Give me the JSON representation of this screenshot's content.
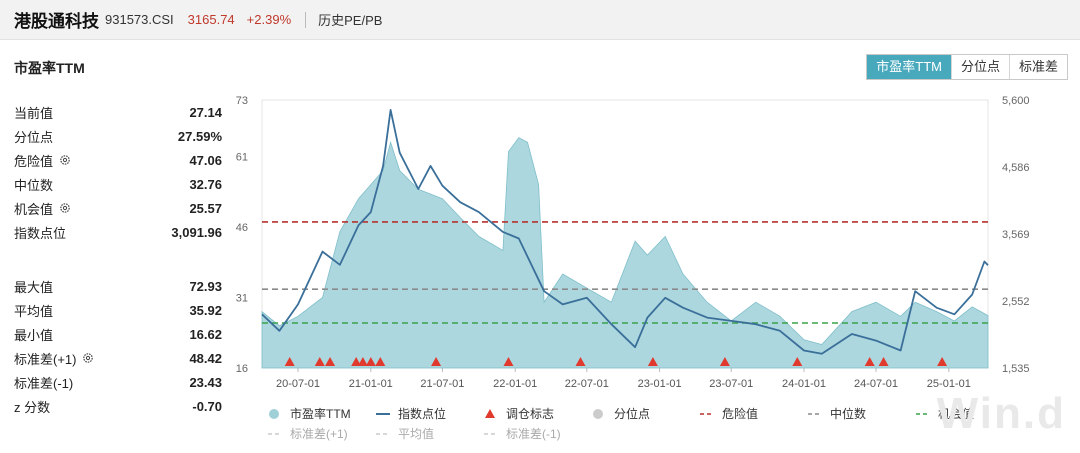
{
  "header": {
    "name": "港股通科技",
    "code": "931573.CSI",
    "price": "3165.74",
    "change": "+2.39%",
    "history_link": "历史PE/PB"
  },
  "section_title": "市盈率TTM",
  "tabs": [
    {
      "label": "市盈率TTM",
      "active": true
    },
    {
      "label": "分位点",
      "active": false
    },
    {
      "label": "标准差",
      "active": false
    }
  ],
  "stats_top": [
    {
      "label": "当前值",
      "value": "27.14",
      "gear": false
    },
    {
      "label": "分位点",
      "value": "27.59%",
      "gear": false
    },
    {
      "label": "危险值",
      "value": "47.06",
      "gear": true
    },
    {
      "label": "中位数",
      "value": "32.76",
      "gear": false
    },
    {
      "label": "机会值",
      "value": "25.57",
      "gear": true
    },
    {
      "label": "指数点位",
      "value": "3,091.96",
      "gear": false
    }
  ],
  "stats_bottom": [
    {
      "label": "最大值",
      "value": "72.93",
      "gear": false
    },
    {
      "label": "平均值",
      "value": "35.92",
      "gear": false
    },
    {
      "label": "最小值",
      "value": "16.62",
      "gear": false
    },
    {
      "label": "标准差(+1)",
      "value": "48.42",
      "gear": true
    },
    {
      "label": "标准差(-1)",
      "value": "23.43",
      "gear": false
    },
    {
      "label": "z 分数",
      "value": "-0.70",
      "gear": false
    }
  ],
  "watermark": "Win.d",
  "colors": {
    "pe_fill": "#9fd0d8",
    "index_line": "#3a6f9a",
    "marker": "#e03a2f",
    "danger": "#b5322e",
    "median": "#8a8a8a",
    "opportunity": "#3aa24a",
    "std": "#c9c9c9",
    "active_tab": "#48a9bd"
  },
  "chart_data": {
    "type": "area",
    "x_ticks": [
      "20-07-01",
      "21-01-01",
      "21-07-01",
      "22-01-01",
      "22-07-01",
      "23-01-01",
      "23-07-01",
      "24-01-01",
      "24-07-01",
      "25-01-01"
    ],
    "x_range": [
      "2020-04-01",
      "2025-04-10"
    ],
    "y_left": {
      "ticks": [
        16,
        31,
        46,
        61,
        73
      ],
      "range": [
        16,
        73
      ]
    },
    "y_right": {
      "ticks": [
        "1,535",
        "2,552",
        "3,569",
        "4,586",
        "5,600"
      ],
      "range": [
        1535,
        5600
      ]
    },
    "reference_lines": {
      "danger": 47.06,
      "median": 32.76,
      "opportunity": 25.57
    },
    "series": [
      {
        "name": "市盈率TTM",
        "axis": "left",
        "points": [
          [
            "2020-04-01",
            28
          ],
          [
            "2020-05-15",
            25
          ],
          [
            "2020-07-01",
            27
          ],
          [
            "2020-09-01",
            31
          ],
          [
            "2020-10-15",
            45
          ],
          [
            "2020-12-01",
            52
          ],
          [
            "2021-01-01",
            55
          ],
          [
            "2021-02-01",
            58
          ],
          [
            "2021-02-20",
            64
          ],
          [
            "2021-03-15",
            58
          ],
          [
            "2021-05-01",
            54
          ],
          [
            "2021-07-01",
            52
          ],
          [
            "2021-08-15",
            48
          ],
          [
            "2021-10-01",
            44
          ],
          [
            "2021-12-01",
            41
          ],
          [
            "2021-12-15",
            62
          ],
          [
            "2022-01-10",
            65
          ],
          [
            "2022-02-01",
            64
          ],
          [
            "2022-03-01",
            55
          ],
          [
            "2022-03-15",
            30
          ],
          [
            "2022-05-01",
            36
          ],
          [
            "2022-07-01",
            33
          ],
          [
            "2022-09-01",
            30
          ],
          [
            "2022-10-31",
            43
          ],
          [
            "2022-12-01",
            40
          ],
          [
            "2023-01-15",
            44
          ],
          [
            "2023-03-01",
            36
          ],
          [
            "2023-05-01",
            30
          ],
          [
            "2023-07-01",
            26
          ],
          [
            "2023-09-01",
            30
          ],
          [
            "2023-11-01",
            27
          ],
          [
            "2024-01-01",
            22
          ],
          [
            "2024-02-15",
            21
          ],
          [
            "2024-05-01",
            28
          ],
          [
            "2024-07-01",
            30
          ],
          [
            "2024-09-01",
            27
          ],
          [
            "2024-10-08",
            30
          ],
          [
            "2024-12-01",
            28
          ],
          [
            "2025-01-15",
            26
          ],
          [
            "2025-03-01",
            29
          ],
          [
            "2025-04-10",
            27.14
          ]
        ]
      },
      {
        "name": "指数点位",
        "axis": "right",
        "points": [
          [
            "2020-04-01",
            2350
          ],
          [
            "2020-05-15",
            2100
          ],
          [
            "2020-07-01",
            2500
          ],
          [
            "2020-09-01",
            3300
          ],
          [
            "2020-10-15",
            3100
          ],
          [
            "2020-12-01",
            3700
          ],
          [
            "2021-01-01",
            3900
          ],
          [
            "2021-02-01",
            4600
          ],
          [
            "2021-02-20",
            5450
          ],
          [
            "2021-03-15",
            4800
          ],
          [
            "2021-05-01",
            4250
          ],
          [
            "2021-06-01",
            4600
          ],
          [
            "2021-07-01",
            4300
          ],
          [
            "2021-08-15",
            4050
          ],
          [
            "2021-10-01",
            3900
          ],
          [
            "2021-12-01",
            3600
          ],
          [
            "2022-01-10",
            3500
          ],
          [
            "2022-03-15",
            2700
          ],
          [
            "2022-05-01",
            2500
          ],
          [
            "2022-07-01",
            2600
          ],
          [
            "2022-09-01",
            2200
          ],
          [
            "2022-10-31",
            1850
          ],
          [
            "2022-12-01",
            2300
          ],
          [
            "2023-01-15",
            2600
          ],
          [
            "2023-03-01",
            2450
          ],
          [
            "2023-05-01",
            2300
          ],
          [
            "2023-07-01",
            2250
          ],
          [
            "2023-09-01",
            2200
          ],
          [
            "2023-11-01",
            2100
          ],
          [
            "2024-01-01",
            1800
          ],
          [
            "2024-02-15",
            1750
          ],
          [
            "2024-05-01",
            2050
          ],
          [
            "2024-07-01",
            1950
          ],
          [
            "2024-09-01",
            1800
          ],
          [
            "2024-10-08",
            2700
          ],
          [
            "2024-12-01",
            2450
          ],
          [
            "2025-01-15",
            2350
          ],
          [
            "2025-03-01",
            2650
          ],
          [
            "2025-04-01",
            3150
          ],
          [
            "2025-04-10",
            3092
          ]
        ]
      }
    ],
    "rebalance_markers": [
      "2020-06-10",
      "2020-08-25",
      "2020-09-20",
      "2020-11-25",
      "2020-12-12",
      "2021-01-01",
      "2021-01-25",
      "2021-06-15",
      "2021-12-15",
      "2022-06-15",
      "2022-12-15",
      "2023-06-15",
      "2023-12-15",
      "2024-06-15",
      "2024-07-20",
      "2024-12-15"
    ],
    "legend": [
      {
        "label": "市盈率TTM",
        "kind": "dot",
        "color": "#9fd0d8"
      },
      {
        "label": "指数点位",
        "kind": "line",
        "color": "#3a6f9a"
      },
      {
        "label": "调仓标志",
        "kind": "triangle",
        "color": "#e03a2f"
      },
      {
        "label": "分位点",
        "kind": "dot",
        "color": "#cccccc"
      },
      {
        "label": "危险值",
        "kind": "dash",
        "color": "#b5322e"
      },
      {
        "label": "中位数",
        "kind": "dash",
        "color": "#8a8a8a"
      },
      {
        "label": "机会值",
        "kind": "dash",
        "color": "#3aa24a"
      },
      {
        "label": "标准差(+1)",
        "kind": "dash",
        "color": "#cccccc"
      },
      {
        "label": "平均值",
        "kind": "dash",
        "color": "#cccccc"
      },
      {
        "label": "标准差(-1)",
        "kind": "dash",
        "color": "#cccccc"
      }
    ],
    "legend_placement": "bottom"
  }
}
